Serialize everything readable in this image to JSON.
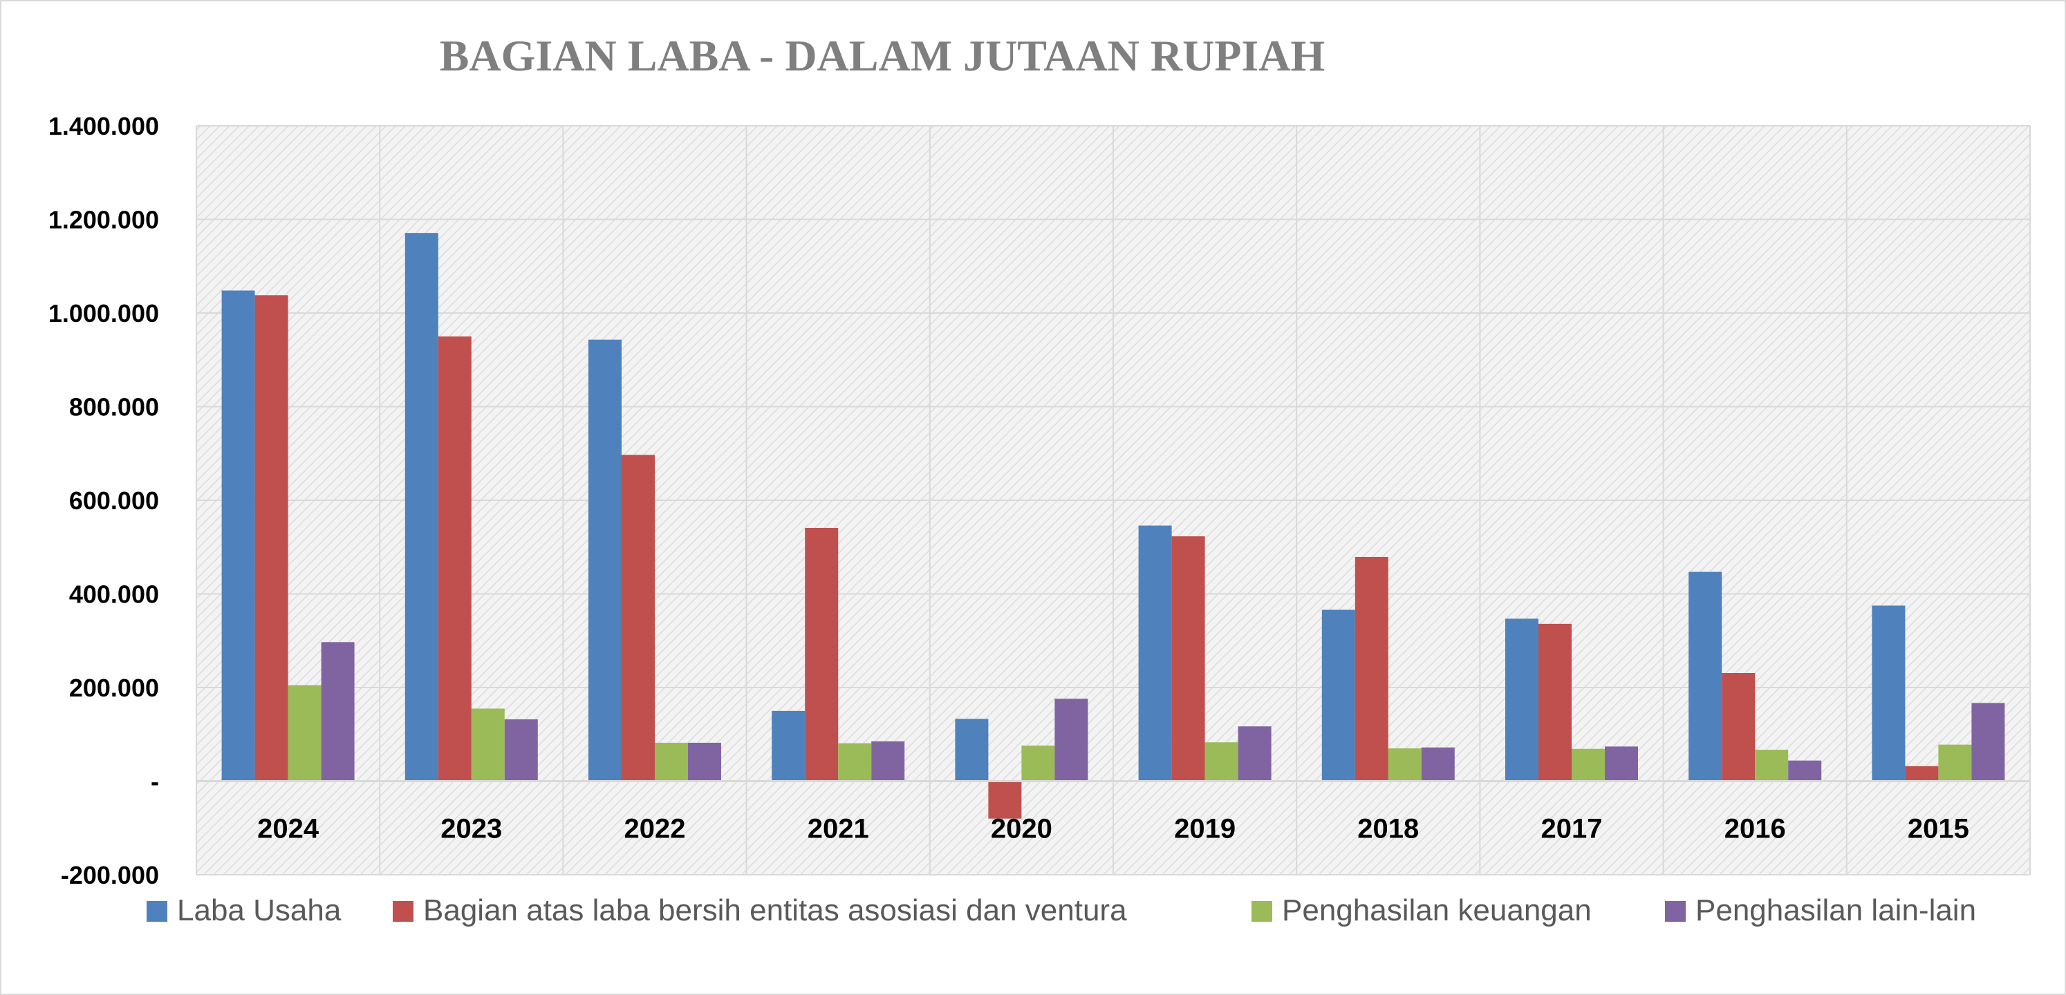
{
  "chart_data": {
    "type": "bar",
    "title": "BAGIAN LABA - DALAM JUTAAN RUPIAH",
    "xlabel": "",
    "ylabel": "",
    "categories": [
      "2024",
      "2023",
      "2022",
      "2021",
      "2020",
      "2019",
      "2018",
      "2017",
      "2016",
      "2015"
    ],
    "series": [
      {
        "name": "Laba Usaha",
        "color": "#4f81bd",
        "values": [
          1048000,
          1171000,
          943000,
          150000,
          133000,
          546000,
          366000,
          347000,
          447000,
          375000
        ]
      },
      {
        "name": "Bagian atas laba bersih entitas asosiasi dan ventura",
        "color": "#c0504d",
        "values": [
          1038000,
          950000,
          697000,
          541000,
          -80000,
          523000,
          479000,
          336000,
          231000,
          32000
        ]
      },
      {
        "name": "Penghasilan keuangan",
        "color": "#9bbb59",
        "values": [
          205000,
          155000,
          82000,
          81000,
          76000,
          83000,
          70000,
          69000,
          67000,
          78000
        ]
      },
      {
        "name": "Penghasilan lain-lain",
        "color": "#8064a2",
        "values": [
          297000,
          132000,
          82000,
          85000,
          176000,
          117000,
          72000,
          74000,
          44000,
          167000
        ]
      }
    ],
    "ylim": [
      -200000,
      1400000
    ],
    "yticks": [
      -200000,
      0,
      200000,
      400000,
      600000,
      800000,
      1000000,
      1200000,
      1400000
    ],
    "ytick_labels": [
      "-200.000",
      "-",
      "200.000",
      "400.000",
      "600.000",
      "800.000",
      "1.000.000",
      "1.200.000",
      "1.400.000"
    ],
    "grid": true,
    "legend": "bottom"
  }
}
